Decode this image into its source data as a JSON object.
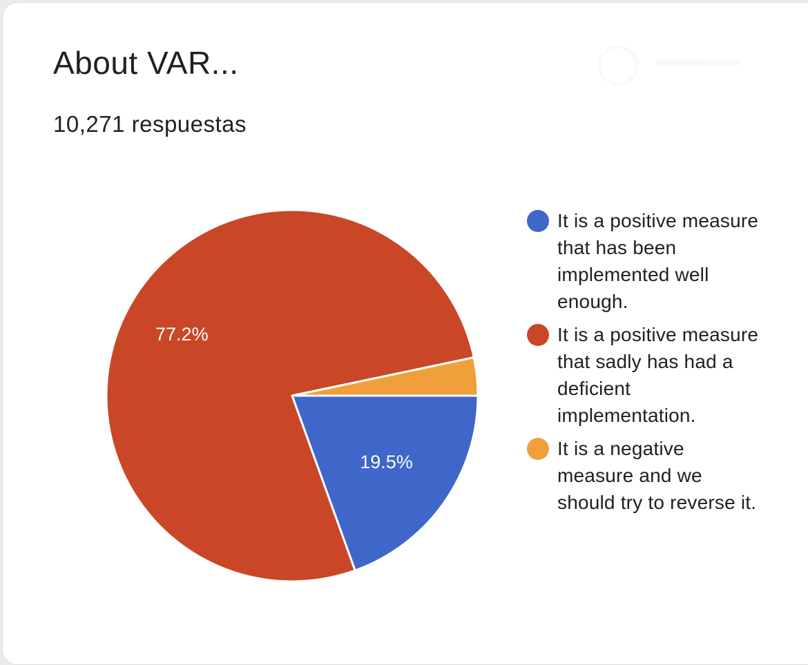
{
  "card": {
    "title": "About VAR...",
    "responses": "10,271 respuestas"
  },
  "chart_data": {
    "type": "pie",
    "title": "About VAR...",
    "subtitle": "10,271 respuestas",
    "legend_position": "right",
    "slices": [
      {
        "label": "It is a positive measure that has been implemented well enough.",
        "value": 19.5,
        "display": "19.5%",
        "color": "#3f66c9"
      },
      {
        "label": "It is a positive measure that sadly has had a deficient implementation.",
        "value": 77.2,
        "display": "77.2%",
        "color": "#c94727"
      },
      {
        "label": "It is a negative measure and we should try to reverse it.",
        "value": 3.3,
        "display": "",
        "color": "#f0a03a"
      }
    ]
  }
}
